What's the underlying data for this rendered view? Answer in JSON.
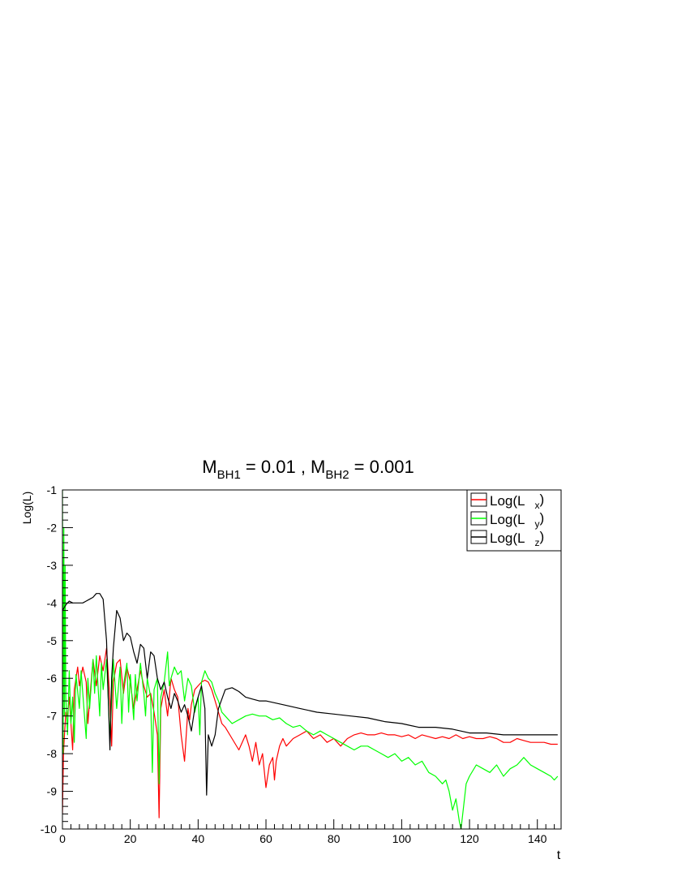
{
  "chart_data": {
    "type": "line",
    "title": {
      "p1": "M",
      "s1": "BH1",
      "p2": " = 0.01 , M",
      "s2": "BH2",
      "p3": " = 0.001"
    },
    "xlabel": "t",
    "ylabel": "Log(L)",
    "xlim": [
      0,
      147
    ],
    "ylim": [
      -10,
      -1
    ],
    "xticks": [
      0,
      20,
      40,
      60,
      80,
      100,
      120,
      140
    ],
    "yticks": [
      -10,
      -9,
      -8,
      -7,
      -6,
      -5,
      -4,
      -3,
      -2,
      -1
    ],
    "grid": false,
    "legend_position": "top-right",
    "series": [
      {
        "name": "Log(L_x)",
        "legend_main": "Log(L",
        "legend_sub": "x",
        "legend_close": ")",
        "color": "#ff0000",
        "x": [
          0,
          0.3,
          0.6,
          1,
          1.5,
          2,
          2.5,
          3,
          3.5,
          4,
          4.5,
          5,
          6,
          7,
          7.5,
          8,
          9,
          10,
          11,
          12,
          13,
          14,
          14.5,
          15,
          16,
          17,
          18,
          19,
          20,
          21,
          22,
          23,
          24,
          25,
          26,
          27,
          28,
          28.5,
          29,
          30,
          31,
          32,
          33,
          34,
          35,
          36,
          37,
          37.5,
          38,
          39,
          40,
          41,
          42,
          43,
          44,
          45,
          46,
          47,
          48,
          50,
          52,
          54,
          55,
          56,
          57,
          58,
          59,
          60,
          61,
          62,
          62.5,
          63,
          64,
          65,
          66,
          68,
          70,
          72,
          74,
          76,
          78,
          80,
          82,
          84,
          86,
          88,
          90,
          92,
          94,
          96,
          98,
          100,
          102,
          104,
          106,
          108,
          110,
          112,
          114,
          116,
          118,
          120,
          122,
          124,
          126,
          128,
          130,
          132,
          134,
          136,
          138,
          140,
          142,
          144,
          146
        ],
        "y": [
          -9.6,
          -8,
          -7.5,
          -6.9,
          -7,
          -6.5,
          -7.2,
          -7.9,
          -6.3,
          -6.0,
          -5.7,
          -6.2,
          -5.7,
          -6.1,
          -7.2,
          -6.6,
          -5.5,
          -6.2,
          -5.4,
          -5.8,
          -5.2,
          -6.6,
          -7.8,
          -6.1,
          -5.6,
          -5.5,
          -6.4,
          -5.7,
          -6.1,
          -6.8,
          -6.3,
          -5.8,
          -6.2,
          -6.5,
          -6.4,
          -6.9,
          -7.5,
          -9.7,
          -6.8,
          -6.3,
          -7.0,
          -6.0,
          -6.3,
          -6.5,
          -7.5,
          -8.2,
          -6.8,
          -7.1,
          -6.7,
          -6.3,
          -6.2,
          -6.1,
          -6.05,
          -6.1,
          -6.3,
          -6.6,
          -6.9,
          -7.2,
          -7.3,
          -7.6,
          -7.9,
          -7.5,
          -7.8,
          -8.2,
          -7.7,
          -8.3,
          -8.0,
          -8.9,
          -8.3,
          -8.1,
          -8.7,
          -8.2,
          -7.8,
          -7.6,
          -7.8,
          -7.6,
          -7.5,
          -7.4,
          -7.6,
          -7.5,
          -7.7,
          -7.6,
          -7.8,
          -7.6,
          -7.5,
          -7.45,
          -7.5,
          -7.5,
          -7.45,
          -7.5,
          -7.5,
          -7.55,
          -7.5,
          -7.6,
          -7.5,
          -7.55,
          -7.6,
          -7.55,
          -7.6,
          -7.5,
          -7.6,
          -7.55,
          -7.6,
          -7.6,
          -7.55,
          -7.6,
          -7.7,
          -7.7,
          -7.6,
          -7.65,
          -7.7,
          -7.7,
          -7.7,
          -7.75,
          -7.75
        ]
      },
      {
        "name": "Log(L_y)",
        "legend_main": "Log(L",
        "legend_sub": "y",
        "legend_close": ")",
        "color": "#00ff00",
        "x": [
          0,
          0.2,
          0.4,
          0.6,
          0.8,
          1,
          1.5,
          2,
          2.5,
          3,
          3.5,
          4,
          5,
          5.5,
          6,
          7,
          7.5,
          8,
          9,
          9.5,
          10,
          11,
          11.5,
          12,
          13,
          14,
          15,
          16,
          17,
          17.5,
          18,
          19,
          19.5,
          20,
          21,
          21.5,
          22,
          23,
          24,
          24.5,
          25,
          26,
          26.5,
          27,
          28,
          28.5,
          29,
          30,
          31,
          31.5,
          32,
          33,
          34,
          35,
          36,
          37,
          38,
          39,
          40,
          40.5,
          41,
          42,
          43,
          44,
          45,
          46,
          47,
          48,
          50,
          52,
          54,
          56,
          58,
          60,
          62,
          64,
          66,
          68,
          70,
          72,
          74,
          76,
          78,
          80,
          82,
          84,
          86,
          88,
          90,
          92,
          94,
          96,
          98,
          100,
          102,
          104,
          106,
          108,
          110,
          112,
          113,
          114,
          115,
          116,
          117,
          117.5,
          118,
          119,
          120,
          122,
          124,
          126,
          128,
          130,
          132,
          134,
          136,
          138,
          140,
          142,
          144,
          145,
          146
        ],
        "y": [
          -1.0,
          -8.0,
          -2.0,
          -7.0,
          -3.0,
          -6.5,
          -7.5,
          -5.8,
          -7.2,
          -6.5,
          -7.7,
          -5.9,
          -6.8,
          -5.8,
          -6.4,
          -7.6,
          -6.0,
          -6.8,
          -5.5,
          -6.4,
          -5.4,
          -7.0,
          -5.6,
          -6.3,
          -5.5,
          -7.6,
          -5.5,
          -6.8,
          -5.7,
          -7.2,
          -6.2,
          -5.6,
          -6.9,
          -5.9,
          -7.1,
          -5.9,
          -6.6,
          -5.6,
          -6.4,
          -7.0,
          -6.0,
          -6.5,
          -8.5,
          -6.3,
          -6.0,
          -8.8,
          -6.5,
          -6.1,
          -5.3,
          -6.2,
          -6.0,
          -5.7,
          -5.9,
          -5.8,
          -6.6,
          -6.0,
          -6.2,
          -6.9,
          -6.5,
          -7.5,
          -6.1,
          -5.8,
          -6.0,
          -6.1,
          -6.4,
          -6.6,
          -6.9,
          -7.0,
          -7.2,
          -7.1,
          -7.0,
          -6.95,
          -7.0,
          -7.0,
          -7.1,
          -7.05,
          -7.2,
          -7.3,
          -7.25,
          -7.4,
          -7.5,
          -7.4,
          -7.5,
          -7.6,
          -7.7,
          -7.8,
          -7.9,
          -7.8,
          -7.8,
          -7.9,
          -8.0,
          -8.1,
          -8.0,
          -8.2,
          -8.1,
          -8.3,
          -8.2,
          -8.5,
          -8.6,
          -8.8,
          -8.7,
          -9.0,
          -9.5,
          -9.2,
          -9.8,
          -10.0,
          -9.6,
          -8.8,
          -8.6,
          -8.3,
          -8.4,
          -8.5,
          -8.3,
          -8.6,
          -8.4,
          -8.3,
          -8.1,
          -8.3,
          -8.4,
          -8.5,
          -8.6,
          -8.7,
          -8.6
        ]
      },
      {
        "name": "Log(L_z)",
        "legend_main": "Log(L",
        "legend_sub": "z",
        "legend_close": ")",
        "color": "#000000",
        "x": [
          0,
          1,
          2,
          3,
          4,
          5,
          6,
          7,
          8,
          9,
          10,
          11,
          12,
          13,
          13.5,
          14,
          14.5,
          15,
          16,
          17,
          18,
          19,
          20,
          21,
          22,
          23,
          24,
          25,
          26,
          27,
          28,
          29,
          30,
          31,
          32,
          33,
          34,
          35,
          36,
          37,
          38,
          39,
          40,
          41,
          42,
          42.5,
          43,
          44,
          45,
          46,
          48,
          50,
          52,
          54,
          56,
          58,
          60,
          65,
          70,
          75,
          80,
          85,
          90,
          95,
          100,
          105,
          110,
          115,
          120,
          125,
          130,
          135,
          140,
          146
        ],
        "y": [
          -4.2,
          -4.05,
          -3.95,
          -4.0,
          -4.0,
          -4.0,
          -4.0,
          -3.95,
          -3.9,
          -3.85,
          -3.75,
          -3.75,
          -3.9,
          -5.0,
          -6.5,
          -7.9,
          -6.0,
          -5.2,
          -4.2,
          -4.4,
          -5.0,
          -4.8,
          -4.9,
          -5.3,
          -5.6,
          -5.1,
          -5.2,
          -6.0,
          -5.3,
          -5.4,
          -6.0,
          -6.3,
          -6.1,
          -6.5,
          -6.8,
          -6.4,
          -6.6,
          -6.9,
          -6.7,
          -7.0,
          -7.4,
          -6.8,
          -6.5,
          -6.2,
          -6.8,
          -9.1,
          -7.5,
          -7.8,
          -7.5,
          -6.8,
          -6.3,
          -6.25,
          -6.35,
          -6.5,
          -6.55,
          -6.6,
          -6.6,
          -6.7,
          -6.8,
          -6.9,
          -6.95,
          -7.0,
          -7.05,
          -7.15,
          -7.2,
          -7.3,
          -7.3,
          -7.35,
          -7.45,
          -7.45,
          -7.5,
          -7.5,
          -7.5,
          -7.5
        ]
      }
    ]
  }
}
